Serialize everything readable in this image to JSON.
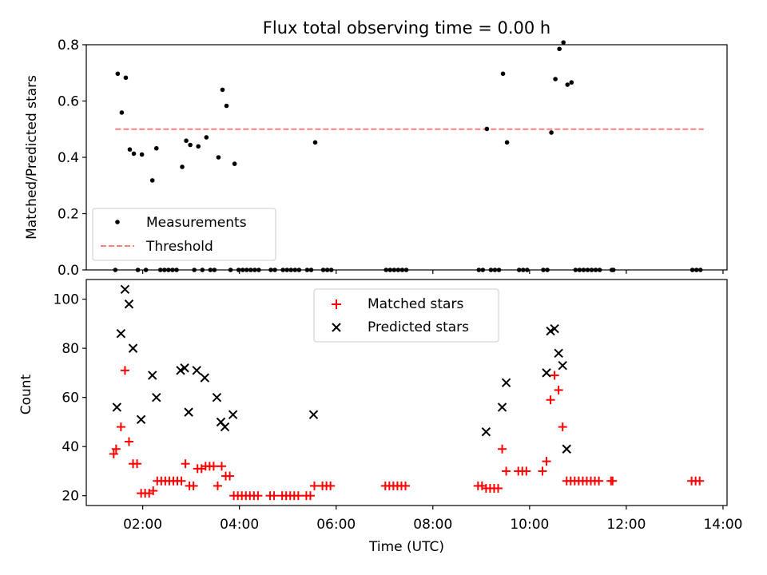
{
  "colors": {
    "matched": "#ff0000",
    "predicted": "#000000",
    "measurement": "#000000",
    "threshold": "#ff7f7f"
  },
  "chart_data": [
    {
      "type": "scatter",
      "title": "Flux total observing time = 0.00 h",
      "ylabel": "Matched/Predicted stars",
      "xlabel": "",
      "xlim": [
        "00:50",
        "14:05"
      ],
      "ylim": [
        0,
        0.8
      ],
      "yticks": [
        0.0,
        0.2,
        0.4,
        0.6,
        0.8
      ],
      "ytick_labels": [
        "0.0",
        "0.2",
        "0.4",
        "0.6",
        "0.8"
      ],
      "xticks": [
        "02:00",
        "04:00",
        "06:00",
        "08:00",
        "10:00",
        "12:00",
        "14:00"
      ],
      "legend": {
        "placement": "lower-left",
        "entries": [
          "Measurements",
          "Threshold"
        ]
      },
      "threshold": {
        "name": "Threshold",
        "y": 0.5,
        "x": [
          "01:26",
          "13:36"
        ]
      },
      "series": [
        {
          "name": "Measurements",
          "marker": "dot",
          "points": [
            [
              "01:26",
              0.0
            ],
            [
              "01:29",
              0.697
            ],
            [
              "01:34",
              0.559
            ],
            [
              "01:39",
              0.683
            ],
            [
              "01:44",
              0.428
            ],
            [
              "01:49",
              0.413
            ],
            [
              "01:54",
              0.0
            ],
            [
              "01:59",
              0.41
            ],
            [
              "02:04",
              0.0
            ],
            [
              "02:12",
              0.318
            ],
            [
              "02:17",
              0.432
            ],
            [
              "02:22",
              0.0
            ],
            [
              "02:27",
              0.0
            ],
            [
              "02:32",
              0.0
            ],
            [
              "02:37",
              0.0
            ],
            [
              "02:42",
              0.0
            ],
            [
              "02:49",
              0.366
            ],
            [
              "02:54",
              0.459
            ],
            [
              "02:59",
              0.444
            ],
            [
              "03:04",
              0.0
            ],
            [
              "03:09",
              0.439
            ],
            [
              "03:14",
              0.0
            ],
            [
              "03:19",
              0.471
            ],
            [
              "03:24",
              0.0
            ],
            [
              "03:29",
              0.0
            ],
            [
              "03:34",
              0.4
            ],
            [
              "03:39",
              0.64
            ],
            [
              "03:44",
              0.583
            ],
            [
              "03:49",
              0.0
            ],
            [
              "03:54",
              0.377
            ],
            [
              "03:59",
              0.0
            ],
            [
              "04:04",
              0.0
            ],
            [
              "04:09",
              0.0
            ],
            [
              "04:14",
              0.0
            ],
            [
              "04:19",
              0.0
            ],
            [
              "04:24",
              0.0
            ],
            [
              "04:39",
              0.0
            ],
            [
              "04:44",
              0.0
            ],
            [
              "04:54",
              0.0
            ],
            [
              "04:59",
              0.0
            ],
            [
              "05:04",
              0.0
            ],
            [
              "05:09",
              0.0
            ],
            [
              "05:14",
              0.0
            ],
            [
              "05:24",
              0.0
            ],
            [
              "05:29",
              0.0
            ],
            [
              "05:34",
              0.453
            ],
            [
              "05:44",
              0.0
            ],
            [
              "05:49",
              0.0
            ],
            [
              "05:54",
              0.0
            ],
            [
              "07:02",
              0.0
            ],
            [
              "07:07",
              0.0
            ],
            [
              "07:12",
              0.0
            ],
            [
              "07:17",
              0.0
            ],
            [
              "07:22",
              0.0
            ],
            [
              "07:27",
              0.0
            ],
            [
              "08:57",
              0.0
            ],
            [
              "09:02",
              0.0
            ],
            [
              "09:07",
              0.501
            ],
            [
              "09:12",
              0.0
            ],
            [
              "09:17",
              0.0
            ],
            [
              "09:22",
              0.0
            ],
            [
              "09:27",
              0.697
            ],
            [
              "09:32",
              0.453
            ],
            [
              "09:47",
              0.0
            ],
            [
              "09:52",
              0.0
            ],
            [
              "09:57",
              0.0
            ],
            [
              "10:17",
              0.0
            ],
            [
              "10:22",
              0.0
            ],
            [
              "10:27",
              0.488
            ],
            [
              "10:32",
              0.678
            ],
            [
              "10:37",
              0.785
            ],
            [
              "10:42",
              0.808
            ],
            [
              "10:47",
              0.658
            ],
            [
              "10:52",
              0.666
            ],
            [
              "10:57",
              0.0
            ],
            [
              "11:02",
              0.0
            ],
            [
              "11:07",
              0.0
            ],
            [
              "11:12",
              0.0
            ],
            [
              "11:17",
              0.0
            ],
            [
              "11:22",
              0.0
            ],
            [
              "11:27",
              0.0
            ],
            [
              "11:42",
              0.0
            ],
            [
              "11:44",
              0.0
            ],
            [
              "13:22",
              0.0
            ],
            [
              "13:27",
              0.0
            ],
            [
              "13:32",
              0.0
            ]
          ]
        }
      ]
    },
    {
      "type": "scatter",
      "title": "",
      "ylabel": "Count",
      "xlabel": "Time (UTC)",
      "xlim": [
        "00:50",
        "14:05"
      ],
      "ylim": [
        16,
        108
      ],
      "yticks": [
        20,
        40,
        60,
        80,
        100
      ],
      "ytick_labels": [
        "20",
        "40",
        "60",
        "80",
        "100"
      ],
      "xticks": [
        "02:00",
        "04:00",
        "06:00",
        "08:00",
        "10:00",
        "12:00",
        "14:00"
      ],
      "xtick_labels": [
        "02:00",
        "04:00",
        "06:00",
        "08:00",
        "10:00",
        "12:00",
        "14:00"
      ],
      "legend": {
        "placement": "upper-center",
        "entries": [
          "Matched stars",
          "Predicted stars"
        ]
      },
      "series": [
        {
          "name": "Matched stars",
          "marker": "plus",
          "points": [
            [
              "01:24",
              37
            ],
            [
              "01:27",
              39
            ],
            [
              "01:33",
              48
            ],
            [
              "01:38",
              71
            ],
            [
              "01:43",
              42
            ],
            [
              "01:48",
              33
            ],
            [
              "01:53",
              33
            ],
            [
              "01:58",
              21
            ],
            [
              "02:03",
              21
            ],
            [
              "02:08",
              21
            ],
            [
              "02:13",
              22
            ],
            [
              "02:18",
              26
            ],
            [
              "02:23",
              26
            ],
            [
              "02:28",
              26
            ],
            [
              "02:33",
              26
            ],
            [
              "02:38",
              26
            ],
            [
              "02:43",
              26
            ],
            [
              "02:48",
              26
            ],
            [
              "02:53",
              33
            ],
            [
              "02:58",
              24
            ],
            [
              "03:03",
              24
            ],
            [
              "03:08",
              31
            ],
            [
              "03:13",
              31
            ],
            [
              "03:18",
              32
            ],
            [
              "03:23",
              32
            ],
            [
              "03:28",
              32
            ],
            [
              "03:33",
              24
            ],
            [
              "03:38",
              32
            ],
            [
              "03:43",
              28
            ],
            [
              "03:48",
              28
            ],
            [
              "03:53",
              20
            ],
            [
              "03:58",
              20
            ],
            [
              "04:03",
              20
            ],
            [
              "04:08",
              20
            ],
            [
              "04:13",
              20
            ],
            [
              "04:18",
              20
            ],
            [
              "04:23",
              20
            ],
            [
              "04:38",
              20
            ],
            [
              "04:43",
              20
            ],
            [
              "04:53",
              20
            ],
            [
              "04:58",
              20
            ],
            [
              "05:03",
              20
            ],
            [
              "05:08",
              20
            ],
            [
              "05:13",
              20
            ],
            [
              "05:23",
              20
            ],
            [
              "05:28",
              20
            ],
            [
              "05:33",
              24
            ],
            [
              "05:43",
              24
            ],
            [
              "05:48",
              24
            ],
            [
              "05:53",
              24
            ],
            [
              "07:01",
              24
            ],
            [
              "07:06",
              24
            ],
            [
              "07:11",
              24
            ],
            [
              "07:16",
              24
            ],
            [
              "07:21",
              24
            ],
            [
              "07:26",
              24
            ],
            [
              "08:56",
              24
            ],
            [
              "09:01",
              24
            ],
            [
              "09:06",
              23
            ],
            [
              "09:11",
              23
            ],
            [
              "09:16",
              23
            ],
            [
              "09:21",
              23
            ],
            [
              "09:26",
              39
            ],
            [
              "09:31",
              30
            ],
            [
              "09:46",
              30
            ],
            [
              "09:51",
              30
            ],
            [
              "09:56",
              30
            ],
            [
              "10:16",
              30
            ],
            [
              "10:21",
              34
            ],
            [
              "10:26",
              59
            ],
            [
              "10:31",
              69
            ],
            [
              "10:36",
              63
            ],
            [
              "10:41",
              48
            ],
            [
              "10:46",
              26
            ],
            [
              "10:51",
              26
            ],
            [
              "10:56",
              26
            ],
            [
              "11:01",
              26
            ],
            [
              "11:06",
              26
            ],
            [
              "11:11",
              26
            ],
            [
              "11:16",
              26
            ],
            [
              "11:21",
              26
            ],
            [
              "11:26",
              26
            ],
            [
              "11:41",
              26
            ],
            [
              "11:43",
              26
            ],
            [
              "13:21",
              26
            ],
            [
              "13:26",
              26
            ],
            [
              "13:31",
              26
            ]
          ]
        },
        {
          "name": "Predicted stars",
          "marker": "x",
          "points": [
            [
              "01:28",
              56
            ],
            [
              "01:33",
              86
            ],
            [
              "01:38",
              104
            ],
            [
              "01:43",
              98
            ],
            [
              "01:48",
              80
            ],
            [
              "01:58",
              51
            ],
            [
              "02:12",
              69
            ],
            [
              "02:17",
              60
            ],
            [
              "02:47",
              71
            ],
            [
              "02:52",
              72
            ],
            [
              "02:57",
              54
            ],
            [
              "03:07",
              71
            ],
            [
              "03:17",
              68
            ],
            [
              "03:32",
              60
            ],
            [
              "03:37",
              50
            ],
            [
              "03:42",
              48
            ],
            [
              "03:52",
              53
            ],
            [
              "05:32",
              53
            ],
            [
              "09:06",
              46
            ],
            [
              "09:26",
              56
            ],
            [
              "09:31",
              66
            ],
            [
              "10:21",
              70
            ],
            [
              "10:26",
              87
            ],
            [
              "10:31",
              88
            ],
            [
              "10:36",
              78
            ],
            [
              "10:41",
              73
            ],
            [
              "10:46",
              39
            ]
          ]
        }
      ]
    }
  ]
}
